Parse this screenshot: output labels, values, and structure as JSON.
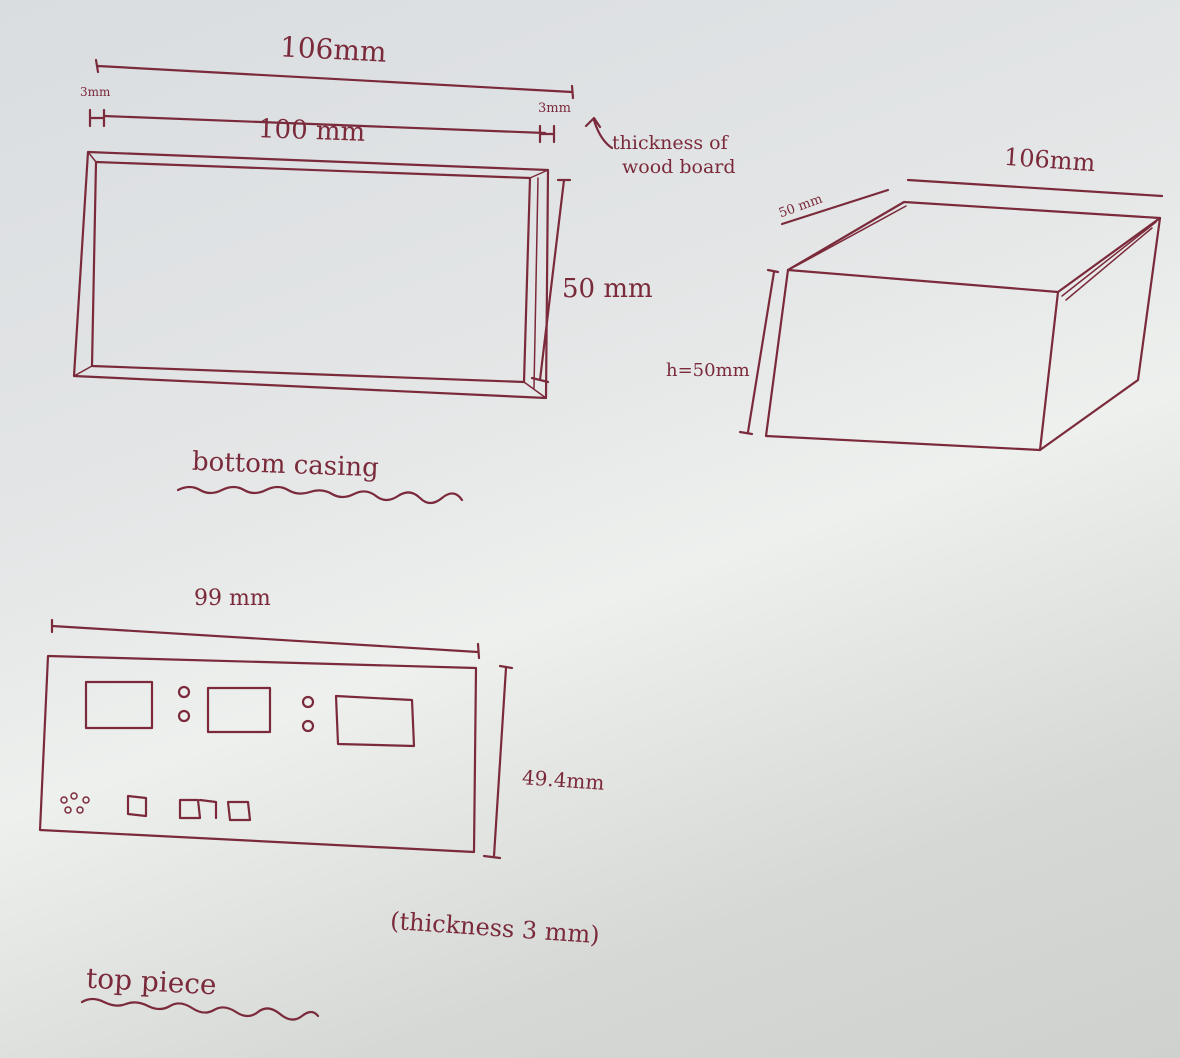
{
  "colors": {
    "ink": "#7a2a3a",
    "paper": "#e3e5e6"
  },
  "bottom_casing": {
    "overall_width": "106mm",
    "wall_left": "3mm",
    "wall_right": "3mm",
    "inner_width": "100 mm",
    "thickness_note_line1": "thickness of",
    "thickness_note_line2": "wood board",
    "height": "50 mm",
    "title": "bottom casing"
  },
  "box_3d": {
    "width": "106mm",
    "depth": "50 mm",
    "height": "h=50mm"
  },
  "top_piece": {
    "width": "99 mm",
    "height": "49.4mm",
    "thickness": "(thickness 3 mm)",
    "title": "top piece"
  }
}
